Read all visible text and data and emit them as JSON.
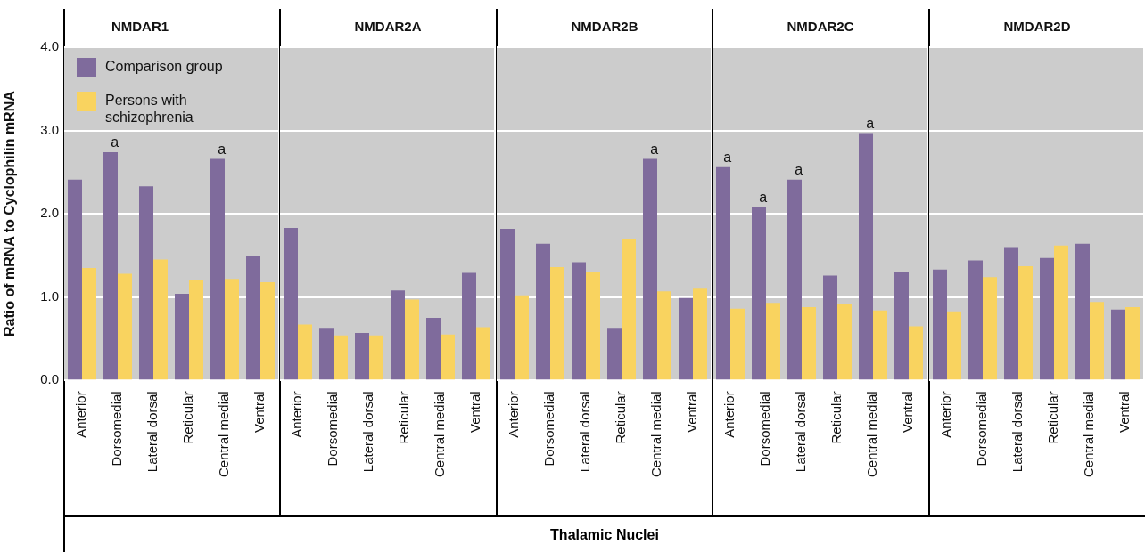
{
  "chart_data": [
    {
      "type": "bar",
      "title": "NMDAR1",
      "ylabel": "Ratio of mRNA to Cyclophilin mRNA",
      "categories": [
        "Anterior",
        "Dorsomedial",
        "Lateral dorsal",
        "Reticular",
        "Central medial",
        "Ventral"
      ],
      "series": [
        {
          "name": "Comparison group",
          "color": "#7f6b9c",
          "values": [
            2.41,
            2.74,
            2.33,
            1.04,
            2.66,
            1.49
          ]
        },
        {
          "name": "Persons with schizophrenia",
          "color": "#f9d35f",
          "values": [
            1.35,
            1.28,
            1.45,
            1.2,
            1.22,
            1.18
          ]
        }
      ],
      "ylim": [
        0,
        4
      ],
      "yticks": [
        {
          "value": 0,
          "label": "0.0"
        },
        {
          "value": 1,
          "label": "1.0"
        },
        {
          "value": 2,
          "label": "2.0"
        },
        {
          "value": 3,
          "label": "3.0"
        },
        {
          "value": 4,
          "label": "4.0"
        }
      ],
      "grid": "y",
      "legend": "top left",
      "annotations": [
        {
          "text": "a",
          "x": "Dorsomedial",
          "y": 2.74
        },
        {
          "text": "a",
          "x": "Central medial",
          "y": 2.66
        }
      ]
    },
    {
      "type": "bar",
      "title": "NMDAR2A",
      "categories": [
        "Anterior",
        "Dorsomedial",
        "Lateral dorsal",
        "Reticular",
        "Central medial",
        "Ventral"
      ],
      "series": [
        {
          "color": "#7f6b9c",
          "values": [
            1.83,
            0.63,
            0.57,
            1.08,
            0.75,
            1.29
          ]
        },
        {
          "color": "#f9d35f",
          "values": [
            0.67,
            0.54,
            0.54,
            0.97,
            0.55,
            0.64
          ]
        }
      ],
      "ylim": [
        0,
        4
      ],
      "yticks": [
        0,
        1,
        2,
        3,
        4
      ],
      "grid": "y",
      "tick_labels": "x"
    },
    {
      "type": "bar",
      "title": "NMDAR2B",
      "xlabel": "Thalamic Nuclei",
      "categories": [
        "Anterior",
        "Dorsomedial",
        "Lateral dorsal",
        "Reticular",
        "Central medial",
        "Ventral"
      ],
      "series": [
        {
          "color": "#7f6b9c",
          "values": [
            1.82,
            1.64,
            1.42,
            0.63,
            2.66,
            0.99
          ]
        },
        {
          "color": "#f9d35f",
          "values": [
            1.02,
            1.36,
            1.3,
            1.7,
            1.07,
            1.1
          ]
        }
      ],
      "ylim": [
        0,
        4
      ],
      "yticks": [
        0,
        1,
        2,
        3,
        4
      ],
      "grid": "y",
      "tick_labels": "x",
      "annotations": [
        {
          "text": "a",
          "x": "Central medial",
          "y": 2.66
        }
      ]
    },
    {
      "type": "bar",
      "title": "NMDAR2C",
      "categories": [
        "Anterior",
        "Dorsomedial",
        "Lateral dorsal",
        "Reticular",
        "Central medial",
        "Ventral"
      ],
      "series": [
        {
          "color": "#7f6b9c",
          "values": [
            2.56,
            2.08,
            2.41,
            1.26,
            2.97,
            1.3
          ]
        },
        {
          "color": "#f9d35f",
          "values": [
            0.86,
            0.93,
            0.88,
            0.92,
            0.84,
            0.65
          ]
        }
      ],
      "ylim": [
        0,
        4
      ],
      "yticks": [
        0,
        1,
        2,
        3,
        4
      ],
      "grid": "y",
      "tick_labels": "x",
      "annotations": [
        {
          "text": "a",
          "x": "Anterior",
          "y": 2.56
        },
        {
          "text": "a",
          "x": "Dorsomedial",
          "y": 2.08
        },
        {
          "text": "a",
          "x": "Lateral dorsal",
          "y": 2.41
        },
        {
          "text": "a",
          "x": "Central medial",
          "y": 2.97
        }
      ]
    },
    {
      "type": "bar",
      "title": "NMDAR2D",
      "categories": [
        "Anterior",
        "Dorsomedial",
        "Lateral dorsal",
        "Reticular",
        "Central medial",
        "Ventral"
      ],
      "series": [
        {
          "color": "#7f6b9c",
          "values": [
            1.33,
            1.44,
            1.6,
            1.47,
            1.64,
            0.85
          ]
        },
        {
          "color": "#f9d35f",
          "values": [
            0.83,
            1.24,
            1.37,
            1.62,
            0.94,
            0.88
          ]
        }
      ],
      "ylim": [
        0,
        4
      ],
      "yticks": [
        0,
        1,
        2,
        3,
        4
      ],
      "grid": "y",
      "tick_labels": "x"
    }
  ]
}
